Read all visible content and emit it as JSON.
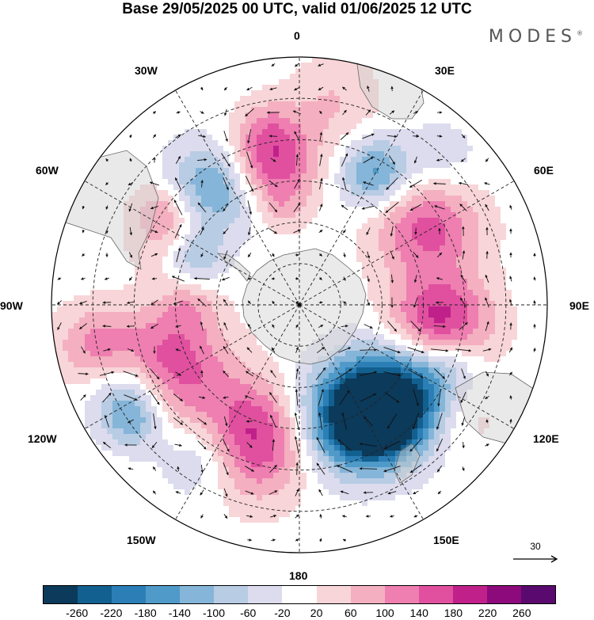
{
  "title": "Base 29/05/2025 00 UTC, valid 01/06/2025 12 UTC",
  "brand": {
    "text": "MODES",
    "mark": "®"
  },
  "longitude_labels": [
    {
      "key": "lon-0",
      "text": "0"
    },
    {
      "key": "lon-30e",
      "text": "30E"
    },
    {
      "key": "lon-60e",
      "text": "60E"
    },
    {
      "key": "lon-90e",
      "text": "90E"
    },
    {
      "key": "lon-120e",
      "text": "120E"
    },
    {
      "key": "lon-150e",
      "text": "150E"
    },
    {
      "key": "lon-180",
      "text": "180"
    },
    {
      "key": "lon-150w",
      "text": "150W"
    },
    {
      "key": "lon-120w",
      "text": "120W"
    },
    {
      "key": "lon-90w",
      "text": "90W"
    },
    {
      "key": "lon-60w",
      "text": "60W"
    },
    {
      "key": "lon-30w",
      "text": "30W"
    }
  ],
  "reference_vector": {
    "label": "30"
  },
  "colorbar": {
    "ticks": [
      "-260",
      "-220",
      "-180",
      "-140",
      "-100",
      "-60",
      "-20",
      "20",
      "60",
      "100",
      "140",
      "180",
      "220",
      "260"
    ],
    "colors": [
      "#0b3a5b",
      "#12608f",
      "#2b7fb6",
      "#4f9ac8",
      "#85b5d8",
      "#b8cce4",
      "#dcdcee",
      "#ffffff",
      "#f8d5d8",
      "#f4b0c0",
      "#ee7fb0",
      "#e0509f",
      "#c0208a",
      "#8c0a7c",
      "#5a0a6e"
    ]
  },
  "anomaly_centers": [
    {
      "lat": -38,
      "lon": 100,
      "value": 240,
      "r": 0.14
    },
    {
      "lat": -40,
      "lon": 130,
      "value": -240,
      "r": 0.15
    },
    {
      "lat": -45,
      "lon": 155,
      "value": -270,
      "r": 0.15
    },
    {
      "lat": -38,
      "lon": 145,
      "value": -180,
      "r": 0.11
    },
    {
      "lat": -38,
      "lon": 200,
      "value": 210,
      "r": 0.16
    },
    {
      "lat": -25,
      "lon": 212,
      "value": -110,
      "r": 0.12
    },
    {
      "lat": -38,
      "lon": 245,
      "value": 170,
      "r": 0.16
    },
    {
      "lat": -20,
      "lon": 242,
      "value": -130,
      "r": 0.11
    },
    {
      "lat": -14,
      "lon": 259,
      "value": 100,
      "r": 0.11
    },
    {
      "lat": -16,
      "lon": 235,
      "value": -90,
      "r": 0.08
    },
    {
      "lat": -38,
      "lon": 325,
      "value": -170,
      "r": 0.13
    },
    {
      "lat": -38,
      "lon": 348,
      "value": 190,
      "r": 0.13
    },
    {
      "lat": -36,
      "lon": 300,
      "value": 90,
      "r": 0.11
    },
    {
      "lat": -48,
      "lon": 295,
      "value": -120,
      "r": 0.08
    },
    {
      "lat": -35,
      "lon": 30,
      "value": -160,
      "r": 0.1
    },
    {
      "lat": -35,
      "lon": 58,
      "value": 160,
      "r": 0.15
    },
    {
      "lat": -32,
      "lon": 110,
      "value": -120,
      "r": 0.1
    },
    {
      "lat": -20,
      "lon": 125,
      "value": 60,
      "r": 0.12
    },
    {
      "lat": -15,
      "lon": 10,
      "value": 60,
      "r": 0.13
    },
    {
      "lat": -18,
      "lon": 45,
      "value": -60,
      "r": 0.12
    },
    {
      "lat": -25,
      "lon": 350,
      "value": 50,
      "r": 0.08
    },
    {
      "lat": -55,
      "lon": 350,
      "value": 40,
      "r": 0.06
    },
    {
      "lat": -28,
      "lon": 305,
      "value": 50,
      "r": 0.07
    },
    {
      "lat": -50,
      "lon": 270,
      "value": 60,
      "r": 0.08
    }
  ]
}
